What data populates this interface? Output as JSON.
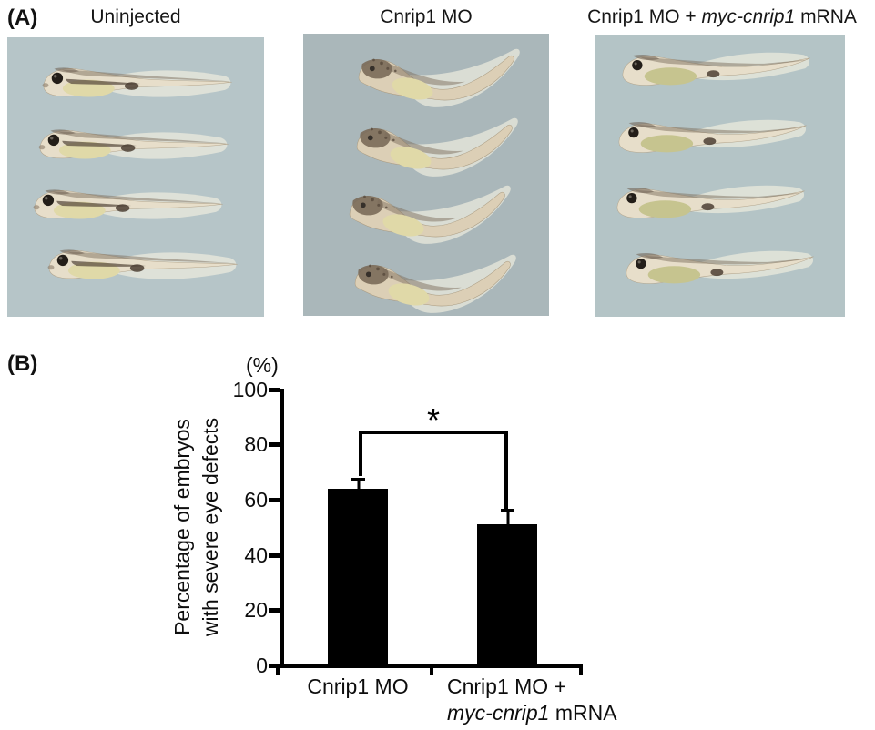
{
  "figure": {
    "panel_a": {
      "label": "(A)",
      "groups": [
        {
          "title": "Uninjected",
          "photo_bg": "#b6c5c8",
          "phenotype": "straight embryos, normal eyes"
        },
        {
          "title": "Cnrip1 MO",
          "photo_bg": "#aab7ba",
          "phenotype": "bent embryos, severe eye defects"
        },
        {
          "title_prefix": "Cnrip1 MO + ",
          "title_italic": "myc-cnrip1",
          "title_suffix": " mRNA",
          "photo_bg": "#b4c4c6",
          "phenotype": "mostly straight embryos, rescued eyes"
        }
      ]
    },
    "panel_b": {
      "label": "(B)",
      "chart_data": {
        "type": "bar",
        "unit_label": "(%)",
        "ylabel": "Percentage of embryos with severe eye defects",
        "ylabel_lines": [
          "Percentage of embryos",
          "with severe eye defects"
        ],
        "categories": [
          "Cnrip1 MO",
          "Cnrip1 MO + myc-cnrip1 mRNA"
        ],
        "categories_display": [
          {
            "line1": "Cnrip1 MO"
          },
          {
            "line1": "Cnrip1 MO +",
            "line2_italic": "myc-cnrip1",
            "line2_rest": " mRNA"
          }
        ],
        "values": [
          64,
          51
        ],
        "errors_plus": [
          4,
          5.5
        ],
        "ylim": [
          0,
          100
        ],
        "yticks": [
          0,
          20,
          40,
          60,
          80,
          100
        ],
        "grid": false,
        "legend": false,
        "bar_color": "#000000",
        "axis_color": "#000000",
        "significance": {
          "symbol": "*",
          "bracket_top": 85,
          "left_drop_to": 70,
          "right_drop_to": 58,
          "between": [
            "Cnrip1 MO",
            "Cnrip1 MO + myc-cnrip1 mRNA"
          ]
        }
      }
    }
  }
}
